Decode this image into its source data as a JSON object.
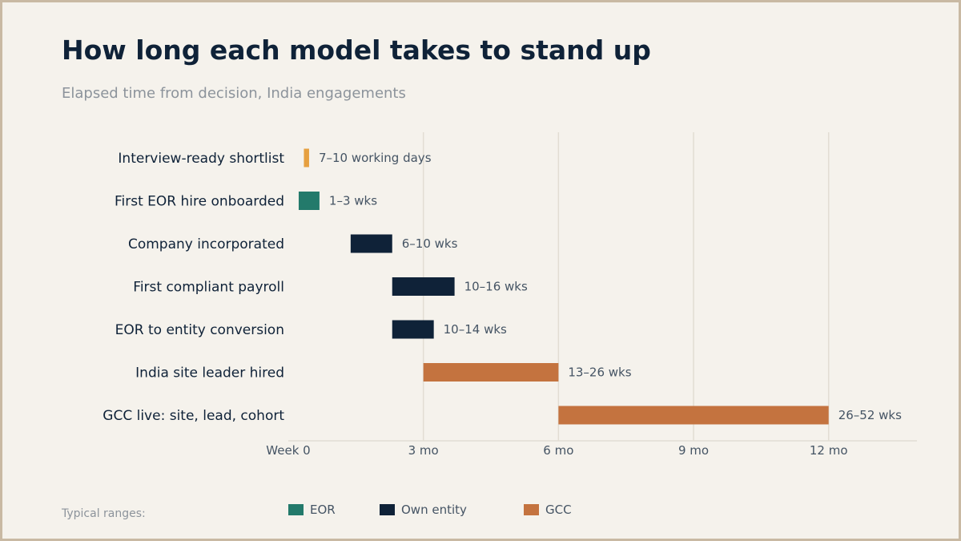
{
  "header": {
    "title": "How long each model takes to stand up",
    "subtitle": "Elapsed time from decision, India engagements"
  },
  "footnote": "Typical ranges:",
  "colors": {
    "background": "#f5f2ec",
    "eor": "#237a6b",
    "own_entity": "#0f2238",
    "gcc": "#c4733f",
    "shortlist": "#e6a040",
    "grid": "#e2ddd3"
  },
  "legend": [
    {
      "label": "EOR",
      "color": "#237a6b"
    },
    {
      "label": "Own entity",
      "color": "#0f2238"
    },
    {
      "label": "GCC",
      "color": "#c4733f"
    }
  ],
  "chart_data": {
    "type": "bar",
    "orientation": "horizontal-range",
    "x_unit": "weeks",
    "xlim": [
      0,
      60.5
    ],
    "x_ticks": [
      {
        "value": 0,
        "label": "Week 0"
      },
      {
        "value": 13,
        "label": "3 mo"
      },
      {
        "value": 26,
        "label": "6 mo"
      },
      {
        "value": 39,
        "label": "9 mo"
      },
      {
        "value": 52,
        "label": "12 mo"
      }
    ],
    "grid": true,
    "legend_position": "bottom",
    "bars": [
      {
        "category": "Interview-ready shortlist",
        "start": 1.5,
        "end": 2.0,
        "label": "7–10 working days",
        "color": "#e6a040"
      },
      {
        "category": "First EOR hire onboarded",
        "start": 1,
        "end": 3,
        "label": "1–3 wks",
        "color": "#237a6b"
      },
      {
        "category": "Company incorporated",
        "start": 6,
        "end": 10,
        "label": "6–10 wks",
        "color": "#0f2238"
      },
      {
        "category": "First compliant payroll",
        "start": 10,
        "end": 16,
        "label": "10–16 wks",
        "color": "#0f2238"
      },
      {
        "category": "EOR to entity conversion",
        "start": 10,
        "end": 14,
        "label": "10–14 wks",
        "color": "#0f2238"
      },
      {
        "category": "India site leader hired",
        "start": 13,
        "end": 26,
        "label": "13–26 wks",
        "color": "#c4733f"
      },
      {
        "category": "GCC live: site, lead, cohort",
        "start": 26,
        "end": 52,
        "label": "26–52 wks",
        "color": "#c4733f"
      }
    ]
  }
}
